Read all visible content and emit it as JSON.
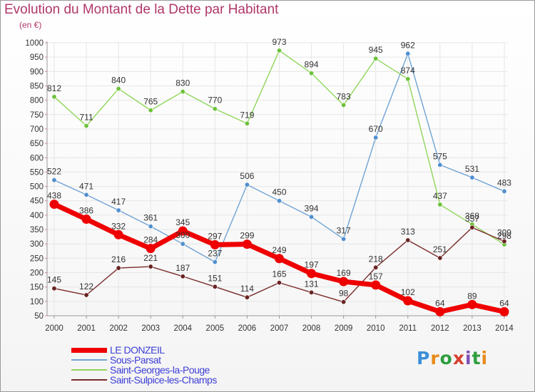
{
  "title": "Evolution du Montant de la Dette par Habitant",
  "unit": "(en €)",
  "logo": [
    {
      "ch": "P",
      "color": "#3b8fd8"
    },
    {
      "ch": "r",
      "color": "#e88a1a"
    },
    {
      "ch": "o",
      "color": "#2f9e3f"
    },
    {
      "ch": "x",
      "color": "#d63f2f"
    },
    {
      "ch": "i",
      "color": "#7f4fb8"
    },
    {
      "ch": "t",
      "color": "#2f9e3f"
    },
    {
      "ch": "i",
      "color": "#e88a1a"
    }
  ],
  "chart_data": {
    "type": "line",
    "x": [
      "2000",
      "2001",
      "2002",
      "2003",
      "2004",
      "2005",
      "2006",
      "2007",
      "2008",
      "2009",
      "2010",
      "2011",
      "2012",
      "2013",
      "2014"
    ],
    "ylim": [
      50,
      1000
    ],
    "yticks": [
      50,
      100,
      150,
      200,
      250,
      300,
      350,
      400,
      450,
      500,
      550,
      600,
      650,
      700,
      750,
      800,
      850,
      900,
      950,
      1000
    ],
    "series": [
      {
        "name": "LE DONZEIL",
        "color": "#ee0000",
        "marker": "#ee0000",
        "bold": true,
        "values": [
          438,
          386,
          332,
          284,
          345,
          297,
          299,
          249,
          197,
          169,
          157,
          102,
          64,
          89,
          64
        ]
      },
      {
        "name": "Sous-Parsat",
        "color": "#6fa3d4",
        "marker": "#4f8fcf",
        "bold": false,
        "values": [
          522,
          471,
          417,
          361,
          300,
          237,
          506,
          450,
          394,
          317,
          670,
          962,
          575,
          531,
          483
        ]
      },
      {
        "name": "Saint-Georges-la-Pouge",
        "color": "#8fd65a",
        "marker": "#6cc23a",
        "bold": false,
        "values": [
          812,
          711,
          840,
          765,
          830,
          770,
          719,
          973,
          894,
          783,
          945,
          874,
          437,
          368,
          298
        ]
      },
      {
        "name": "Saint-Sulpice-les-Champs",
        "color": "#7a2a2a",
        "marker": "#6a2222",
        "bold": false,
        "values": [
          145,
          122,
          216,
          221,
          187,
          151,
          114,
          165,
          131,
          98,
          218,
          313,
          251,
          357,
          309
        ]
      }
    ]
  }
}
